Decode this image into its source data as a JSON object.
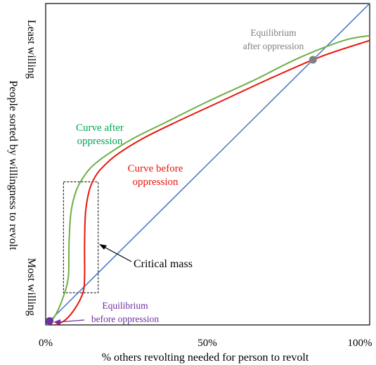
{
  "chart_data": {
    "type": "line",
    "title": "",
    "xlabel": "% others revolting needed for person to revolt",
    "ylabel": "People sorted by willingness to revolt",
    "ytop_label": "Least willing",
    "ybottom_label": "Most willing",
    "xlim": [
      0,
      100
    ],
    "ylim": [
      0,
      100
    ],
    "x_ticks": [
      {
        "value": 0,
        "label": "0%"
      },
      {
        "value": 50,
        "label": "50%"
      },
      {
        "value": 100,
        "label": "100%"
      }
    ],
    "grid": false,
    "series": [
      {
        "name": "",
        "color": "#4472c4",
        "points": [
          [
            0,
            0
          ],
          [
            100,
            100
          ]
        ]
      },
      {
        "name": "Curve before oppression",
        "color": "#e8150c",
        "points": [
          [
            3,
            0
          ],
          [
            6,
            1.5
          ],
          [
            9,
            5
          ],
          [
            11.5,
            10
          ],
          [
            12,
            15
          ],
          [
            12,
            25
          ],
          [
            12.3,
            35
          ],
          [
            13.5,
            42
          ],
          [
            15.5,
            46.5
          ],
          [
            18,
            49.5
          ],
          [
            22,
            53
          ],
          [
            30,
            58
          ],
          [
            40,
            63
          ],
          [
            55,
            70
          ],
          [
            70,
            77
          ],
          [
            85,
            83.5
          ],
          [
            100,
            88.5
          ]
        ]
      },
      {
        "name": "Curve after oppression",
        "color": "#70ad47",
        "points": [
          [
            0.5,
            0
          ],
          [
            3,
            3
          ],
          [
            5.5,
            9
          ],
          [
            7,
            15
          ],
          [
            7.2,
            25
          ],
          [
            7.8,
            35
          ],
          [
            9.5,
            42
          ],
          [
            12,
            46.5
          ],
          [
            14.5,
            49.5
          ],
          [
            19,
            53
          ],
          [
            27,
            58
          ],
          [
            37,
            63
          ],
          [
            50,
            69.5
          ],
          [
            64,
            76
          ],
          [
            78,
            83
          ],
          [
            92,
            88.5
          ],
          [
            100,
            90
          ]
        ]
      }
    ],
    "points": [
      {
        "x": 1.2,
        "y": 1.2,
        "color": "#7030a0"
      },
      {
        "x": 82.5,
        "y": 82.5,
        "color": "#808080"
      }
    ],
    "critical_box": {
      "x0": 5.5,
      "x1": 16.2,
      "y0": 10,
      "y1": 44.5
    },
    "annotations": {
      "after_curve": {
        "line1": "Curve after",
        "line2": "oppression",
        "color": "#00a651"
      },
      "before_curve": {
        "line1": "Curve before",
        "line2": "oppression",
        "color": "#e8150c"
      },
      "critical": {
        "text": "Critical mass",
        "color": "#000000"
      },
      "eq_after": {
        "line1": "Equilibrium",
        "line2": "after oppression",
        "color": "#808080"
      },
      "eq_before": {
        "line1": "Equilibrium",
        "line2": "before oppression",
        "color": "#7030a0"
      }
    }
  }
}
